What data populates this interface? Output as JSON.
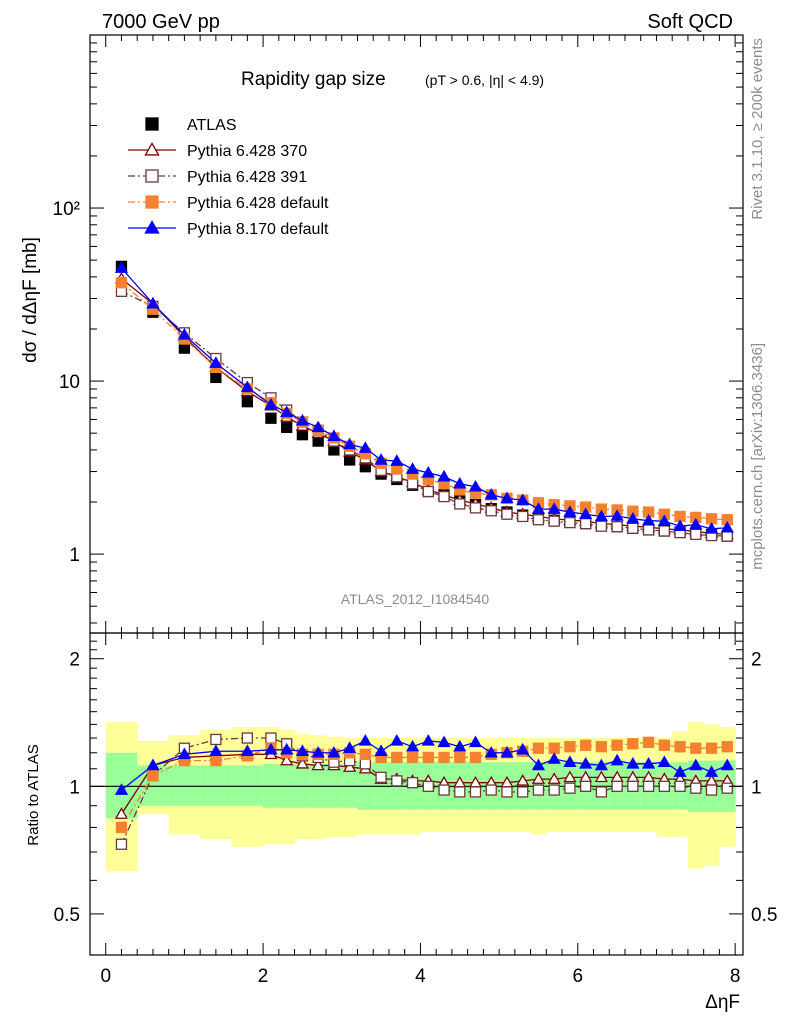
{
  "header": {
    "left": "7000 GeV pp",
    "right": "Soft QCD"
  },
  "chart_data": [
    {
      "type": "scatter",
      "title": "Rapidity gap size",
      "subtitle": "(pT > 0.6, |η| < 4.9)",
      "xlabel": "ΔηF",
      "ylabel": "dσ / dΔηF [mb]",
      "yscale": "log",
      "xlim": [
        -0.2,
        8.1
      ],
      "ylim": [
        0.35,
        1000
      ],
      "ytick_labels": [
        "1",
        "10",
        "10²"
      ],
      "legend_position": "top-left",
      "watermark": "ATLAS_2012_I1084540",
      "x": [
        0.2,
        0.6,
        1.0,
        1.4,
        1.8,
        2.1,
        2.3,
        2.5,
        2.7,
        2.9,
        3.1,
        3.3,
        3.5,
        3.7,
        3.9,
        4.1,
        4.3,
        4.5,
        4.7,
        4.9,
        5.1,
        5.3,
        5.5,
        5.7,
        5.9,
        6.1,
        6.3,
        6.5,
        6.7,
        6.9,
        7.1,
        7.3,
        7.5,
        7.7,
        7.9
      ],
      "series": [
        {
          "name": "ATLAS",
          "color": "#000000",
          "marker": "filled-square",
          "line": "none",
          "values": [
            46,
            25,
            15.5,
            10.5,
            7.6,
            6.1,
            5.4,
            4.9,
            4.5,
            4.0,
            3.5,
            3.2,
            2.9,
            2.7,
            2.5,
            2.3,
            2.2,
            2.05,
            1.93,
            1.83,
            1.75,
            1.68,
            1.62,
            1.57,
            1.53,
            1.5,
            1.47,
            1.44,
            1.41,
            1.38,
            1.36,
            1.34,
            1.32,
            1.3,
            1.27
          ]
        },
        {
          "name": "Pythia 6.428 370",
          "color": "#7f0000",
          "marker": "open-triangle",
          "line": "solid",
          "values": [
            39,
            28,
            18,
            12,
            8.7,
            7.2,
            6.2,
            5.5,
            5.0,
            4.5,
            3.9,
            3.5,
            3.0,
            2.8,
            2.6,
            2.35,
            2.2,
            2.05,
            1.95,
            1.85,
            1.75,
            1.7,
            1.65,
            1.6,
            1.57,
            1.55,
            1.5,
            1.48,
            1.45,
            1.43,
            1.4,
            1.38,
            1.35,
            1.32,
            1.3
          ]
        },
        {
          "name": "Pythia 6.428 391",
          "color": "#6b3a3a",
          "marker": "open-square",
          "line": "dashdot",
          "values": [
            33,
            27,
            19,
            13.5,
            9.8,
            8.0,
            6.8,
            5.8,
            5.2,
            4.5,
            4.0,
            3.6,
            3.05,
            2.8,
            2.55,
            2.3,
            2.15,
            1.95,
            1.85,
            1.78,
            1.7,
            1.65,
            1.58,
            1.55,
            1.52,
            1.5,
            1.45,
            1.44,
            1.41,
            1.38,
            1.36,
            1.33,
            1.3,
            1.28,
            1.27
          ]
        },
        {
          "name": "Pythia 6.428 default",
          "color": "#f48030",
          "marker": "filled-square",
          "line": "dashdot",
          "values": [
            37,
            26,
            17.5,
            12,
            9.0,
            7.5,
            6.5,
            5.8,
            5.2,
            4.7,
            4.2,
            3.8,
            3.35,
            3.1,
            2.9,
            2.7,
            2.55,
            2.35,
            2.25,
            2.2,
            2.1,
            2.05,
            1.98,
            1.93,
            1.9,
            1.87,
            1.82,
            1.8,
            1.77,
            1.75,
            1.7,
            1.65,
            1.63,
            1.6,
            1.58
          ]
        },
        {
          "name": "Pythia 8.170 default",
          "color": "#0000ff",
          "marker": "filled-triangle",
          "line": "solid",
          "values": [
            45,
            28,
            18.5,
            12.7,
            9.2,
            7.3,
            6.6,
            5.9,
            5.4,
            4.8,
            4.3,
            4.1,
            3.5,
            3.45,
            3.1,
            2.95,
            2.8,
            2.55,
            2.45,
            2.2,
            2.1,
            2.05,
            1.82,
            1.82,
            1.75,
            1.7,
            1.65,
            1.66,
            1.6,
            1.56,
            1.55,
            1.45,
            1.48,
            1.4,
            1.42
          ]
        }
      ]
    },
    {
      "type": "scatter",
      "ylabel": "Ratio to ATLAS",
      "xlabel": "ΔηF",
      "xlim": [
        -0.2,
        8.1
      ],
      "ylim": [
        0.4,
        2.3
      ],
      "ytick_labels": [
        "0.5",
        "1",
        "2"
      ],
      "xtick_labels": [
        "0",
        "2",
        "4",
        "6",
        "8"
      ],
      "reference_line": 1,
      "bands": {
        "x_edges": [
          0.0,
          0.4,
          0.8,
          1.2,
          1.6,
          2.0,
          2.2,
          2.4,
          2.6,
          2.8,
          3.0,
          3.2,
          3.4,
          3.6,
          3.8,
          4.0,
          4.2,
          4.4,
          4.6,
          4.8,
          5.0,
          5.2,
          5.4,
          5.6,
          5.8,
          6.0,
          6.2,
          6.4,
          6.6,
          6.8,
          7.0,
          7.2,
          7.4,
          7.6,
          7.8,
          8.0
        ],
        "stat_lo": [
          0.84,
          0.9,
          0.9,
          0.9,
          0.9,
          0.89,
          0.89,
          0.89,
          0.89,
          0.89,
          0.89,
          0.88,
          0.88,
          0.88,
          0.88,
          0.88,
          0.88,
          0.88,
          0.88,
          0.88,
          0.88,
          0.88,
          0.88,
          0.88,
          0.88,
          0.88,
          0.88,
          0.88,
          0.88,
          0.88,
          0.88,
          0.88,
          0.87,
          0.87,
          0.87
        ],
        "stat_hi": [
          1.2,
          1.12,
          1.12,
          1.12,
          1.12,
          1.13,
          1.13,
          1.13,
          1.13,
          1.13,
          1.13,
          1.14,
          1.14,
          1.14,
          1.14,
          1.14,
          1.14,
          1.14,
          1.14,
          1.14,
          1.14,
          1.14,
          1.14,
          1.14,
          1.14,
          1.14,
          1.14,
          1.14,
          1.14,
          1.14,
          1.14,
          1.14,
          1.15,
          1.15,
          1.15
        ],
        "syst_lo": [
          0.63,
          0.86,
          0.77,
          0.75,
          0.72,
          0.73,
          0.73,
          0.75,
          0.75,
          0.76,
          0.76,
          0.77,
          0.77,
          0.77,
          0.77,
          0.78,
          0.78,
          0.78,
          0.78,
          0.78,
          0.78,
          0.78,
          0.77,
          0.78,
          0.78,
          0.78,
          0.78,
          0.78,
          0.78,
          0.78,
          0.76,
          0.76,
          0.64,
          0.65,
          0.72
        ],
        "syst_hi": [
          1.42,
          1.28,
          1.32,
          1.36,
          1.38,
          1.38,
          1.36,
          1.33,
          1.32,
          1.31,
          1.3,
          1.3,
          1.3,
          1.3,
          1.3,
          1.3,
          1.3,
          1.3,
          1.3,
          1.3,
          1.3,
          1.3,
          1.3,
          1.3,
          1.3,
          1.3,
          1.3,
          1.3,
          1.3,
          1.3,
          1.3,
          1.35,
          1.42,
          1.4,
          1.38
        ]
      },
      "series": [
        {
          "name": "Pythia 6.428 370",
          "values": [
            0.86,
            1.12,
            1.17,
            1.18,
            1.19,
            1.19,
            1.15,
            1.13,
            1.12,
            1.12,
            1.11,
            1.1,
            1.04,
            1.04,
            1.03,
            1.03,
            1.02,
            1.02,
            1.02,
            1.02,
            1.02,
            1.03,
            1.04,
            1.04,
            1.05,
            1.05,
            1.05,
            1.05,
            1.05,
            1.05,
            1.04,
            1.04,
            1.03,
            1.03,
            1.03
          ]
        },
        {
          "name": "Pythia 6.428 391",
          "values": [
            0.73,
            1.06,
            1.23,
            1.29,
            1.3,
            1.3,
            1.26,
            1.18,
            1.17,
            1.14,
            1.15,
            1.13,
            1.05,
            1.03,
            1.02,
            1.0,
            0.98,
            0.97,
            0.97,
            0.98,
            0.97,
            0.97,
            0.98,
            0.98,
            0.99,
            1.0,
            0.97,
            1.0,
            1.0,
            1.0,
            1.0,
            1.0,
            0.99,
            0.98,
            0.99
          ]
        },
        {
          "name": "Pythia 6.428 default",
          "values": [
            0.8,
            1.06,
            1.15,
            1.15,
            1.18,
            1.23,
            1.2,
            1.19,
            1.19,
            1.19,
            1.2,
            1.19,
            1.17,
            1.17,
            1.17,
            1.17,
            1.17,
            1.17,
            1.17,
            1.19,
            1.2,
            1.21,
            1.23,
            1.23,
            1.24,
            1.25,
            1.24,
            1.25,
            1.26,
            1.27,
            1.25,
            1.24,
            1.23,
            1.23,
            1.24
          ]
        },
        {
          "name": "Pythia 8.170 default",
          "values": [
            0.98,
            1.12,
            1.19,
            1.21,
            1.21,
            1.22,
            1.22,
            1.21,
            1.2,
            1.2,
            1.23,
            1.28,
            1.21,
            1.28,
            1.24,
            1.28,
            1.27,
            1.24,
            1.27,
            1.2,
            1.2,
            1.22,
            1.12,
            1.16,
            1.14,
            1.13,
            1.12,
            1.15,
            1.13,
            1.13,
            1.14,
            1.08,
            1.12,
            1.08,
            1.12
          ]
        }
      ]
    }
  ],
  "side_labels": {
    "rivet": "Rivet 3.1.10, ≥ 200k events",
    "mcplots": "mcplots.cern.ch [arXiv:1306.3436]"
  }
}
